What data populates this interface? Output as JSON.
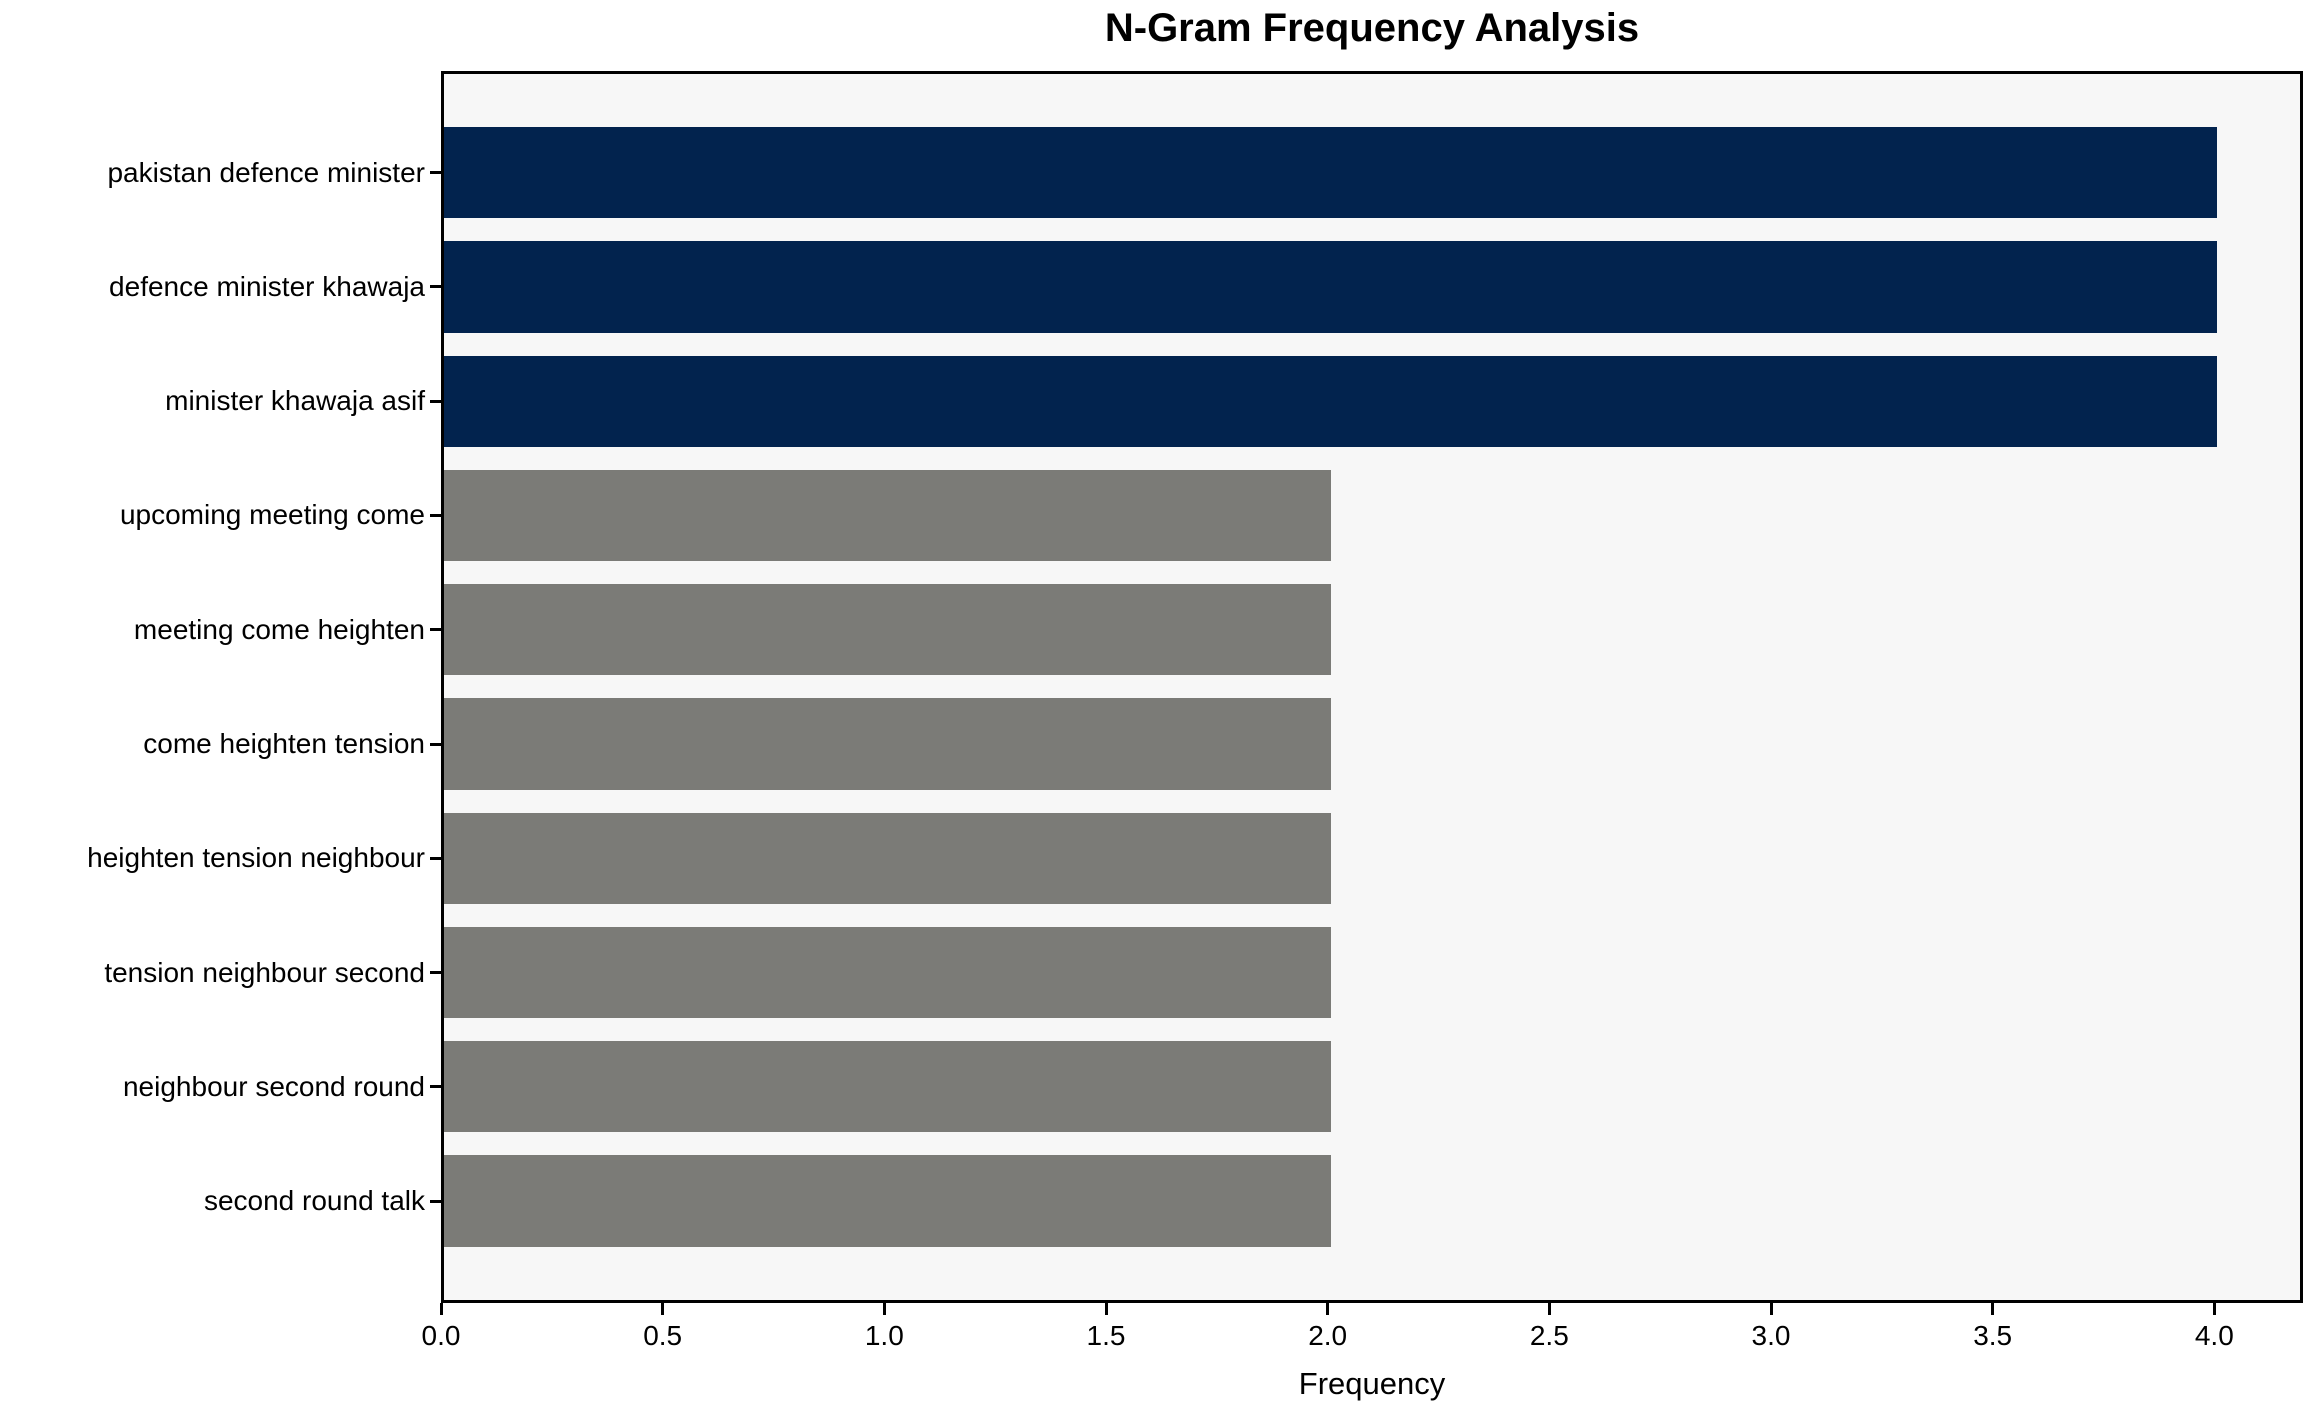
{
  "chart_data": {
    "type": "bar",
    "orientation": "horizontal",
    "title": "N-Gram Frequency Analysis",
    "xlabel": "Frequency",
    "ylabel": "",
    "categories": [
      "pakistan defence minister",
      "defence minister khawaja",
      "minister khawaja asif",
      "upcoming meeting come",
      "meeting come heighten",
      "come heighten tension",
      "heighten tension neighbour",
      "tension neighbour second",
      "neighbour second round",
      "second round talk"
    ],
    "values": [
      4,
      4,
      4,
      2,
      2,
      2,
      2,
      2,
      2,
      2
    ],
    "bar_colors": [
      "#02234e",
      "#02234e",
      "#02234e",
      "#7b7b77",
      "#7b7b77",
      "#7b7b77",
      "#7b7b77",
      "#7b7b77",
      "#7b7b77",
      "#7b7b77"
    ],
    "highlight_color": "#02234e",
    "default_color": "#7b7b77",
    "plot_background": "#f7f7f7",
    "spine_color": "#000000",
    "xlim": [
      0,
      4.2
    ],
    "xticks": [
      0,
      0.5,
      1,
      1.5,
      2,
      2.5,
      3,
      3.5,
      4
    ],
    "xtick_labels": [
      "0.0",
      "0.5",
      "1.0",
      "1.5",
      "2.0",
      "2.5",
      "3.0",
      "3.5",
      "4.0"
    ],
    "grid": false,
    "legend_position": "none"
  }
}
